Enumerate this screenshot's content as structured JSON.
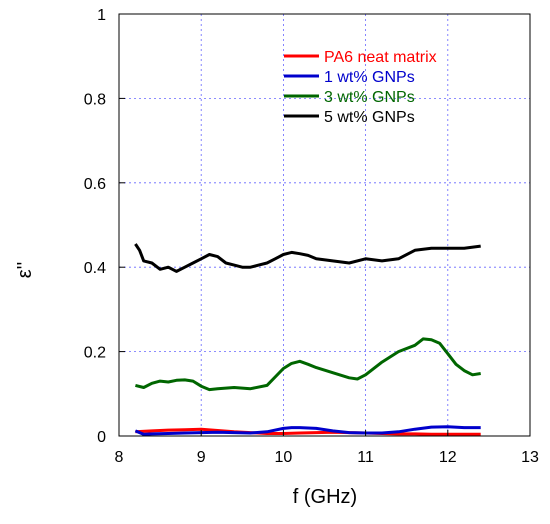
{
  "chart_data": {
    "type": "line",
    "xlabel": "f (GHz)",
    "ylabel": "ε''",
    "xlim": [
      8,
      13
    ],
    "ylim": [
      0,
      1
    ],
    "x_ticks": [
      "8",
      "9",
      "10",
      "11",
      "12",
      "13"
    ],
    "y_ticks": [
      "0",
      "0.2",
      "0.4",
      "0.6",
      "0.8",
      "1"
    ],
    "x_tick_values": [
      8,
      9,
      10,
      11,
      12,
      13
    ],
    "y_tick_values": [
      0,
      0.2,
      0.4,
      0.6,
      0.8,
      1
    ],
    "grid": true,
    "legend_position": "top-right",
    "series": [
      {
        "name": "PA6 neat matrix",
        "color": "#ff0000",
        "x": [
          8.2,
          8.4,
          8.6,
          8.8,
          9.0,
          9.2,
          9.4,
          9.6,
          9.8,
          10.0,
          10.2,
          10.4,
          10.6,
          10.8,
          11.0,
          11.2,
          11.4,
          11.6,
          11.8,
          12.0,
          12.2,
          12.4
        ],
        "y": [
          0.01,
          0.012,
          0.014,
          0.015,
          0.016,
          0.013,
          0.01,
          0.008,
          0.006,
          0.006,
          0.007,
          0.008,
          0.009,
          0.008,
          0.007,
          0.006,
          0.005,
          0.005,
          0.004,
          0.004,
          0.004,
          0.004
        ]
      },
      {
        "name": "1 wt% GNPs",
        "color": "#0000cc",
        "x": [
          8.2,
          8.3,
          8.4,
          8.6,
          8.8,
          9.0,
          9.2,
          9.4,
          9.6,
          9.8,
          10.0,
          10.1,
          10.2,
          10.4,
          10.6,
          10.8,
          11.0,
          11.2,
          11.4,
          11.6,
          11.8,
          12.0,
          12.2,
          12.4
        ],
        "y": [
          0.012,
          0.004,
          0.005,
          0.006,
          0.007,
          0.008,
          0.009,
          0.008,
          0.007,
          0.01,
          0.018,
          0.02,
          0.02,
          0.018,
          0.012,
          0.008,
          0.007,
          0.007,
          0.01,
          0.016,
          0.021,
          0.022,
          0.02,
          0.02
        ]
      },
      {
        "name": "3 wt% GNPs",
        "color": "#006600",
        "x": [
          8.2,
          8.3,
          8.4,
          8.5,
          8.6,
          8.7,
          8.8,
          8.9,
          9.0,
          9.1,
          9.2,
          9.4,
          9.6,
          9.8,
          10.0,
          10.1,
          10.2,
          10.3,
          10.4,
          10.6,
          10.8,
          10.9,
          11.0,
          11.2,
          11.4,
          11.6,
          11.7,
          11.8,
          11.9,
          12.0,
          12.1,
          12.2,
          12.3,
          12.4
        ],
        "y": [
          0.12,
          0.115,
          0.125,
          0.13,
          0.128,
          0.132,
          0.133,
          0.13,
          0.118,
          0.11,
          0.112,
          0.115,
          0.112,
          0.12,
          0.16,
          0.172,
          0.177,
          0.17,
          0.162,
          0.15,
          0.138,
          0.135,
          0.145,
          0.175,
          0.2,
          0.215,
          0.23,
          0.228,
          0.22,
          0.195,
          0.17,
          0.155,
          0.145,
          0.148
        ]
      },
      {
        "name": "5 wt% GNPs",
        "color": "#000000",
        "x": [
          8.2,
          8.25,
          8.3,
          8.4,
          8.5,
          8.6,
          8.7,
          8.8,
          8.9,
          9.0,
          9.1,
          9.2,
          9.3,
          9.4,
          9.5,
          9.6,
          9.7,
          9.8,
          9.9,
          10.0,
          10.1,
          10.2,
          10.3,
          10.4,
          10.6,
          10.8,
          11.0,
          11.2,
          11.4,
          11.6,
          11.8,
          12.0,
          12.2,
          12.4
        ],
        "y": [
          0.455,
          0.44,
          0.415,
          0.41,
          0.395,
          0.4,
          0.39,
          0.4,
          0.41,
          0.42,
          0.43,
          0.425,
          0.41,
          0.405,
          0.4,
          0.4,
          0.405,
          0.41,
          0.42,
          0.43,
          0.435,
          0.432,
          0.428,
          0.42,
          0.415,
          0.41,
          0.42,
          0.415,
          0.42,
          0.44,
          0.445,
          0.445,
          0.445,
          0.45
        ]
      }
    ]
  }
}
